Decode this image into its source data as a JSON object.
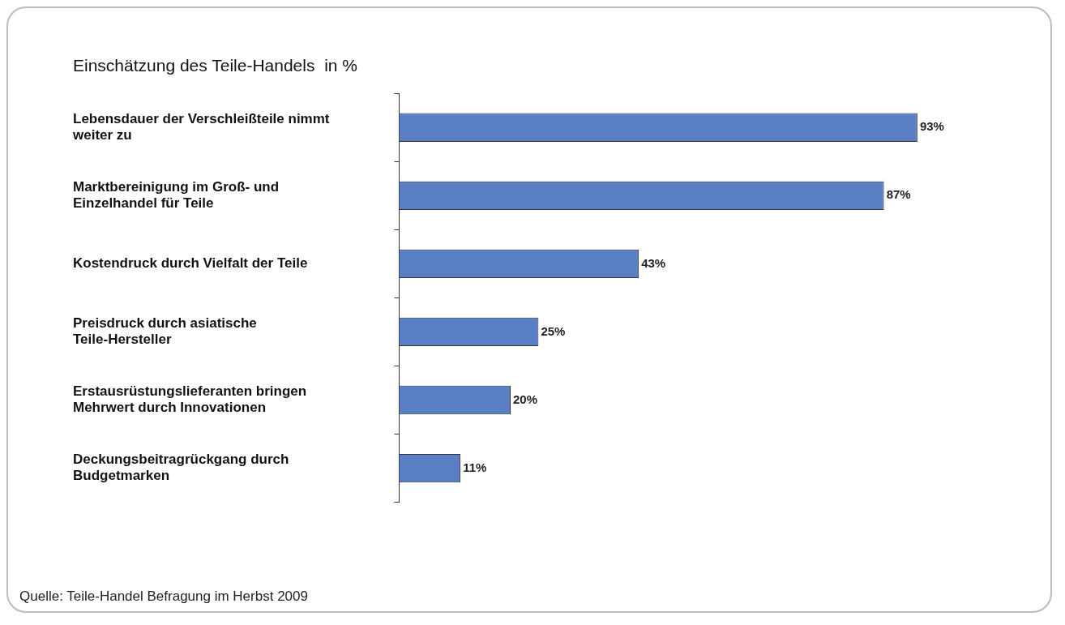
{
  "chart_data": {
    "type": "bar",
    "orientation": "horizontal",
    "title": "Einschätzung des Teile-Handels  in %",
    "categories": [
      "Lebensdauer der Verschleißteile nimmt weiter zu",
      "Marktbereinigung im Groß- und Einzelhandel für Teile",
      "Kostendruck durch Vielfalt der Teile",
      "Preisdruck durch asiatische Teile-Hersteller",
      "Erstausrüstungslieferanten bringen Mehrwert durch Innovationen",
      "Deckungsbeitragrückgang durch Budgetmarken"
    ],
    "values": [
      93,
      87,
      43,
      25,
      20,
      11
    ],
    "value_labels": [
      "93%",
      "87%",
      "43%",
      "25%",
      "20%",
      "11%"
    ],
    "color": "#5b7fc4",
    "tick_labels": "y",
    "grid": false,
    "legend": false,
    "annotations": [
      "Quelle: Teile-Handel Befragung im Herbst 2009"
    ]
  }
}
